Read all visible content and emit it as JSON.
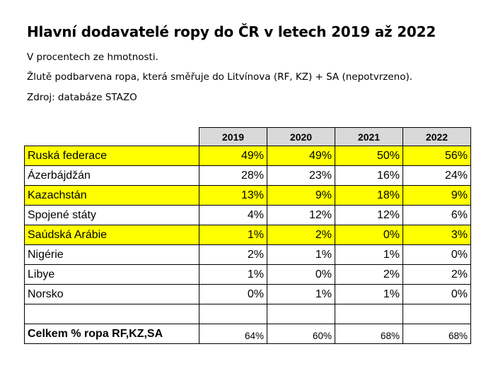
{
  "title": "Hlavní dodavatelé ropy do ČR v letech 2019 až 2022",
  "subtitle_lines": [
    "V procentech ze hmotnosti.",
    "Žlutě podbarvena ropa, která směřuje do Litvínova (RF, KZ) + SA (nepotvrzeno).",
    "Zdroj: databáze STAZO"
  ],
  "highlight_color": "#ffff00",
  "header_color": "#d9d9d9",
  "table": {
    "years": [
      "2019",
      "2020",
      "2021",
      "2022"
    ],
    "rows": [
      {
        "name": "Ruská federace",
        "values": [
          "49%",
          "49%",
          "50%",
          "56%"
        ],
        "highlighted": true
      },
      {
        "name": "Ázerbájdžán",
        "values": [
          "28%",
          "23%",
          "16%",
          "24%"
        ],
        "highlighted": false
      },
      {
        "name": "Kazachstán",
        "values": [
          "13%",
          "9%",
          "18%",
          "9%"
        ],
        "highlighted": true
      },
      {
        "name": "Spojené státy",
        "values": [
          "4%",
          "12%",
          "12%",
          "6%"
        ],
        "highlighted": false
      },
      {
        "name": "Saúdská Arábie",
        "values": [
          "1%",
          "2%",
          "0%",
          "3%"
        ],
        "highlighted": true
      },
      {
        "name": "Nigérie",
        "values": [
          "2%",
          "1%",
          "1%",
          "0%"
        ],
        "highlighted": false
      },
      {
        "name": "Libye",
        "values": [
          "1%",
          "0%",
          "2%",
          "2%"
        ],
        "highlighted": false
      },
      {
        "name": "Norsko",
        "values": [
          "0%",
          "1%",
          "1%",
          "0%"
        ],
        "highlighted": false
      }
    ],
    "total": {
      "name": "Celkem % ropa RF,KZ,SA",
      "values": [
        "64%",
        "60%",
        "68%",
        "68%"
      ]
    }
  }
}
